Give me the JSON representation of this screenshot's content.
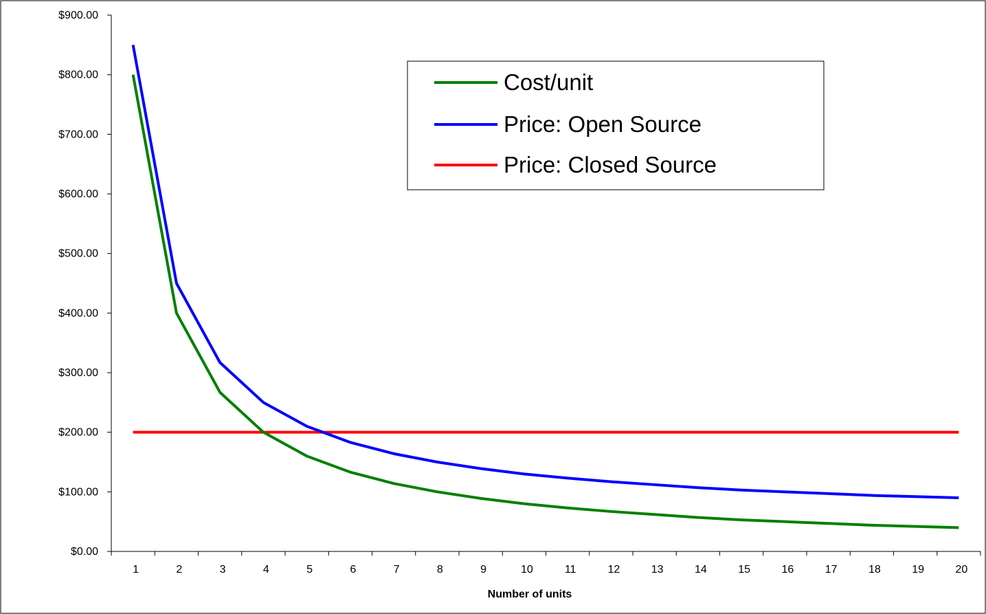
{
  "chart_data": {
    "type": "line",
    "title": "",
    "xlabel": "Number of units",
    "ylabel": "",
    "x": [
      1,
      2,
      3,
      4,
      5,
      6,
      7,
      8,
      9,
      10,
      11,
      12,
      13,
      14,
      15,
      16,
      17,
      18,
      19,
      20
    ],
    "y_ticks": [
      "$0.00",
      "$100.00",
      "$200.00",
      "$300.00",
      "$400.00",
      "$500.00",
      "$600.00",
      "$700.00",
      "$800.00",
      "$900.00"
    ],
    "ylim": [
      0,
      900
    ],
    "grid": false,
    "legend_position": "top-center",
    "series": [
      {
        "name": "Cost/unit",
        "color": "#008000",
        "values": [
          800,
          400,
          267,
          200,
          160,
          133,
          114,
          100,
          89,
          80,
          73,
          67,
          62,
          57,
          53,
          50,
          47,
          44,
          42,
          40
        ]
      },
      {
        "name": "Price: Open Source",
        "color": "#0000ff",
        "values": [
          850,
          450,
          317,
          250,
          210,
          183,
          164,
          150,
          139,
          130,
          123,
          117,
          112,
          107,
          103,
          100,
          97,
          94,
          92,
          90
        ]
      },
      {
        "name": "Price: Closed Source",
        "color": "#ff0000",
        "values": [
          200,
          200,
          200,
          200,
          200,
          200,
          200,
          200,
          200,
          200,
          200,
          200,
          200,
          200,
          200,
          200,
          200,
          200,
          200,
          200
        ]
      }
    ]
  }
}
